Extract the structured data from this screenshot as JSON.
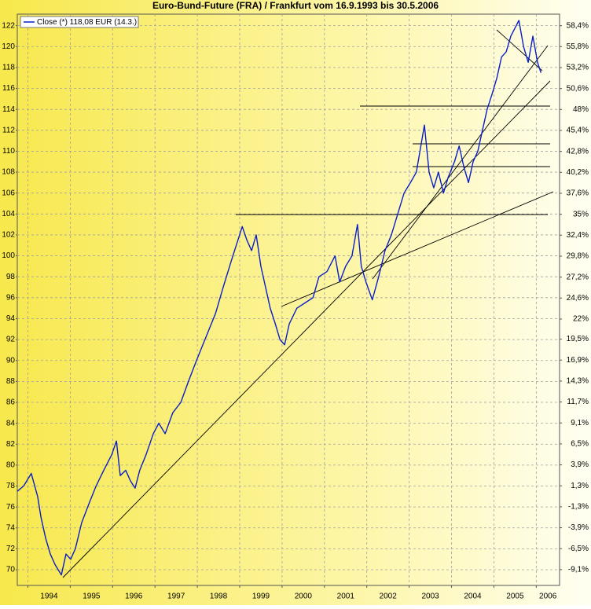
{
  "chart_data": {
    "type": "line",
    "title": "Euro-Bund-Future (FRA) / Frankfurt vom 16.9.1993 bis 30.5.2006",
    "x": [
      1993.75,
      1993.9,
      1994.08,
      1994.23,
      1994.31,
      1994.42,
      1994.53,
      1994.64,
      1994.79,
      1994.9,
      1995.01,
      1995.12,
      1995.27,
      1995.46,
      1995.61,
      1995.79,
      1995.98,
      1996.09,
      1996.18,
      1996.31,
      1996.42,
      1996.53,
      1996.64,
      1996.79,
      1996.96,
      1997.09,
      1997.24,
      1997.42,
      1997.61,
      1997.79,
      1997.98,
      1998.13,
      1998.28,
      1998.43,
      1998.61,
      1998.8,
      1999.06,
      1999.17,
      1999.28,
      1999.39,
      1999.5,
      1999.61,
      1999.72,
      1999.84,
      1999.95,
      2000.06,
      2000.17,
      2000.35,
      2000.54,
      2000.73,
      2000.87,
      2001.06,
      2001.25,
      2001.36,
      2001.5,
      2001.65,
      2001.78,
      2001.87,
      2001.98,
      2002.13,
      2002.28,
      2002.43,
      2002.58,
      2002.73,
      2002.88,
      2003.03,
      2003.17,
      2003.36,
      2003.47,
      2003.58,
      2003.69,
      2003.81,
      2003.92,
      2004.07,
      2004.18,
      2004.29,
      2004.4,
      2004.51,
      2004.62,
      2004.73,
      2004.84,
      2004.96,
      2005.07,
      2005.18,
      2005.29,
      2005.4,
      2005.59,
      2005.7,
      2005.81,
      2005.92,
      2006.03,
      2006.11
    ],
    "series": [
      {
        "name": "Close (*) 118,08 EUR (14.3.)",
        "color": "#0a1ec8",
        "values": [
          77.5,
          78,
          79.2,
          77,
          75,
          73,
          71.5,
          70.5,
          69.5,
          71.5,
          71,
          72,
          74.5,
          76.5,
          78,
          79.5,
          81,
          82.3,
          79,
          79.5,
          78.5,
          77.8,
          79.5,
          81,
          83,
          84,
          83,
          85,
          86,
          88,
          90,
          91.5,
          93,
          94.5,
          97,
          99.5,
          102.8,
          101.5,
          100.5,
          102,
          99,
          97,
          95,
          93.5,
          92,
          91.5,
          93.5,
          95,
          95.5,
          96,
          98,
          98.5,
          100,
          97.5,
          99,
          100,
          103,
          99,
          97.5,
          95.8,
          98,
          100.5,
          102,
          104,
          106,
          107,
          108,
          112.5,
          108,
          106.5,
          108,
          106,
          107.5,
          109,
          110.5,
          108.5,
          107,
          109,
          110,
          112,
          114,
          115.5,
          117,
          119,
          119.5,
          121,
          122.5,
          120,
          118.5,
          121,
          118.5,
          117.5
        ]
      }
    ],
    "xlim": [
      1993.75,
      2006.55
    ],
    "xticks": [
      1994,
      1995,
      1996,
      1997,
      1998,
      1999,
      2000,
      2001,
      2002,
      2003,
      2004,
      2005,
      2006
    ],
    "ylim": [
      68.5,
      123.1
    ],
    "yticks": [
      70,
      72,
      74,
      76,
      78,
      80,
      82,
      84,
      86,
      88,
      90,
      92,
      94,
      96,
      98,
      100,
      102,
      104,
      106,
      108,
      110,
      112,
      114,
      116,
      118,
      120,
      122
    ],
    "y2lim": [
      -11.06,
      59.83
    ],
    "y2ticks": [
      {
        "value": 58.4,
        "label": "58,4%"
      },
      {
        "value": 55.8,
        "label": "55,8%"
      },
      {
        "value": 53.2,
        "label": "53,2%"
      },
      {
        "value": 50.6,
        "label": "50,6%"
      },
      {
        "value": 48,
        "label": "48%"
      },
      {
        "value": 45.4,
        "label": "45,4%"
      },
      {
        "value": 42.8,
        "label": "42,8%"
      },
      {
        "value": 40.2,
        "label": "40,2%"
      },
      {
        "value": 37.6,
        "label": "37,6%"
      },
      {
        "value": 35,
        "label": "35%"
      },
      {
        "value": 32.4,
        "label": "32,4%"
      },
      {
        "value": 29.8,
        "label": "29,8%"
      },
      {
        "value": 27.2,
        "label": "27,2%"
      },
      {
        "value": 24.6,
        "label": "24,6%"
      },
      {
        "value": 22,
        "label": "22%"
      },
      {
        "value": 19.5,
        "label": "19,5%"
      },
      {
        "value": 16.9,
        "label": "16,9%"
      },
      {
        "value": 14.3,
        "label": "14,3%"
      },
      {
        "value": 11.7,
        "label": "11,7%"
      },
      {
        "value": 9.1,
        "label": "9,1%"
      },
      {
        "value": 6.5,
        "label": "6,5%"
      },
      {
        "value": 3.9,
        "label": "3,9%"
      },
      {
        "value": 1.3,
        "label": "1,3%"
      },
      {
        "value": -1.3,
        "label": "-1,3%"
      },
      {
        "value": -3.9,
        "label": "-3,9%"
      },
      {
        "value": -6.5,
        "label": "-6,5%"
      },
      {
        "value": -9.1,
        "label": "-9,1%"
      }
    ],
    "grid": true,
    "legend": "upper left"
  }
}
